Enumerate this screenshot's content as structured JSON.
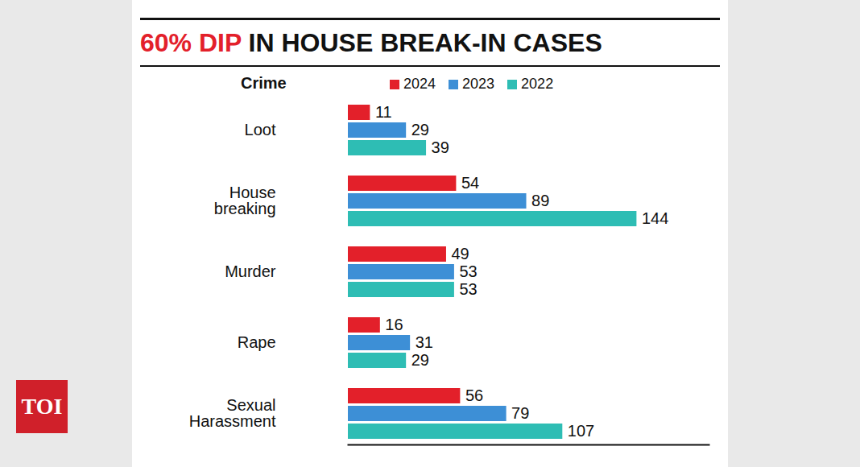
{
  "chart_data": {
    "type": "bar",
    "orientation": "horizontal",
    "title": "60% DIP IN HOUSE BREAK-IN CASES",
    "y_label": "Crime",
    "categories": [
      "Loot",
      "House breaking",
      "Murder",
      "Rape",
      "Sexual Harassment"
    ],
    "series": [
      {
        "name": "2024",
        "color": "#e3202a",
        "values": [
          11,
          54,
          49,
          16,
          56
        ]
      },
      {
        "name": "2023",
        "color": "#3d8fd6",
        "values": [
          29,
          89,
          53,
          31,
          79
        ]
      },
      {
        "name": "2022",
        "color": "#2ebdb4",
        "values": [
          39,
          144,
          53,
          29,
          107
        ]
      }
    ],
    "xlim": [
      0,
      180
    ],
    "xticks": [],
    "data_labels": true,
    "tick_labels": "y",
    "legend": "top",
    "grid": false,
    "annotations": [
      "TOI"
    ]
  }
}
